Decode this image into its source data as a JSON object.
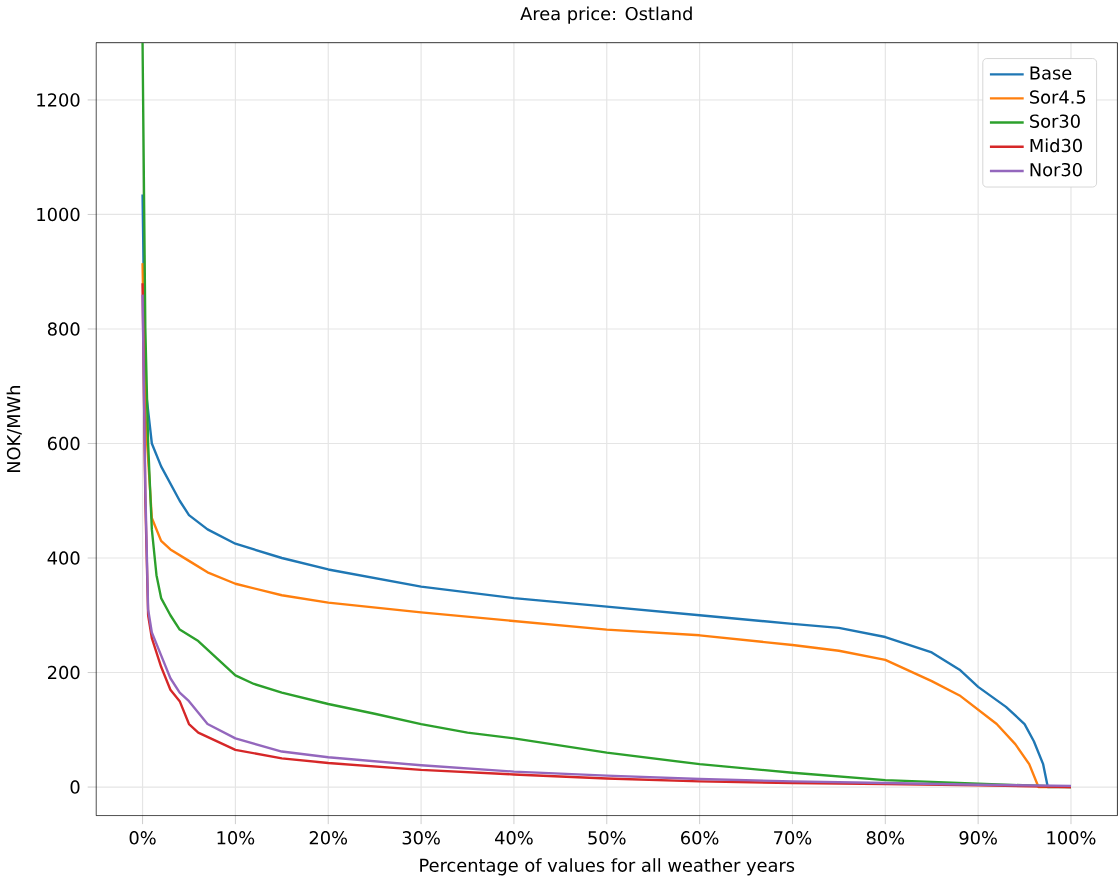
{
  "chart_data": {
    "type": "line",
    "title": "Area price: Ostland",
    "xlabel": "Percentage of values for all weather years",
    "ylabel": "NOK/MWh",
    "xlim": [
      -5,
      105
    ],
    "ylim": [
      -50,
      1300
    ],
    "xticks": [
      {
        "value": 0,
        "label": "0%"
      },
      {
        "value": 10,
        "label": "10%"
      },
      {
        "value": 20,
        "label": "20%"
      },
      {
        "value": 30,
        "label": "30%"
      },
      {
        "value": 40,
        "label": "40%"
      },
      {
        "value": 50,
        "label": "50%"
      },
      {
        "value": 60,
        "label": "60%"
      },
      {
        "value": 70,
        "label": "70%"
      },
      {
        "value": 80,
        "label": "80%"
      },
      {
        "value": 90,
        "label": "90%"
      },
      {
        "value": 100,
        "label": "100%"
      }
    ],
    "yticks": [
      0,
      200,
      400,
      600,
      800,
      1000,
      1200
    ],
    "grid": true,
    "legend": "top right",
    "line_style": "solid",
    "marker": "none",
    "series": [
      {
        "name": "Base",
        "color": "#1f77b4",
        "x": [
          0,
          0.3,
          1,
          2,
          3,
          4,
          5,
          7,
          10,
          15,
          20,
          25,
          30,
          40,
          50,
          60,
          70,
          75,
          80,
          85,
          88,
          90,
          93,
          95,
          96,
          97,
          97.5,
          100
        ],
        "values": [
          1035,
          700,
          600,
          560,
          530,
          500,
          475,
          450,
          425,
          400,
          380,
          365,
          350,
          330,
          315,
          300,
          285,
          278,
          262,
          235,
          205,
          175,
          140,
          110,
          80,
          40,
          0,
          0
        ]
      },
      {
        "name": "Sor4.5",
        "color": "#ff7f0e",
        "x": [
          0,
          0.3,
          1,
          2,
          3,
          5,
          7,
          10,
          15,
          20,
          30,
          40,
          50,
          60,
          70,
          75,
          80,
          85,
          88,
          90,
          92,
          94,
          95.5,
          96.5,
          100
        ],
        "values": [
          915,
          650,
          470,
          430,
          415,
          395,
          375,
          355,
          335,
          322,
          305,
          290,
          275,
          265,
          248,
          238,
          222,
          185,
          160,
          135,
          110,
          75,
          40,
          0,
          0
        ]
      },
      {
        "name": "Sor30",
        "color": "#2ca02c",
        "x": [
          0,
          0.3,
          0.6,
          1,
          1.5,
          2,
          3,
          4,
          6,
          8,
          10,
          12,
          15,
          20,
          25,
          30,
          35,
          40,
          50,
          60,
          70,
          80,
          90,
          100
        ],
        "values": [
          1300,
          800,
          600,
          450,
          370,
          330,
          300,
          275,
          255,
          225,
          195,
          180,
          165,
          145,
          128,
          110,
          95,
          85,
          60,
          40,
          25,
          12,
          null,
          0
        ]
      },
      {
        "name": "Mid30",
        "color": "#d62728",
        "x": [
          0,
          0.3,
          0.6,
          1,
          2,
          3,
          4,
          5,
          6,
          8,
          10,
          15,
          20,
          30,
          40,
          50,
          60,
          70,
          80,
          90,
          100
        ],
        "values": [
          880,
          500,
          300,
          260,
          210,
          170,
          150,
          110,
          95,
          80,
          65,
          50,
          42,
          30,
          22,
          15,
          10,
          7,
          5,
          3,
          0
        ]
      },
      {
        "name": "Nor30",
        "color": "#9467bd",
        "x": [
          0,
          0.3,
          0.6,
          1,
          2,
          3,
          4,
          5,
          6,
          7,
          10,
          15,
          20,
          30,
          40,
          50,
          60,
          70,
          80,
          90,
          100
        ],
        "values": [
          860,
          520,
          310,
          270,
          230,
          190,
          165,
          150,
          130,
          110,
          85,
          62,
          52,
          38,
          27,
          20,
          14,
          10,
          7,
          4,
          2
        ]
      }
    ]
  }
}
